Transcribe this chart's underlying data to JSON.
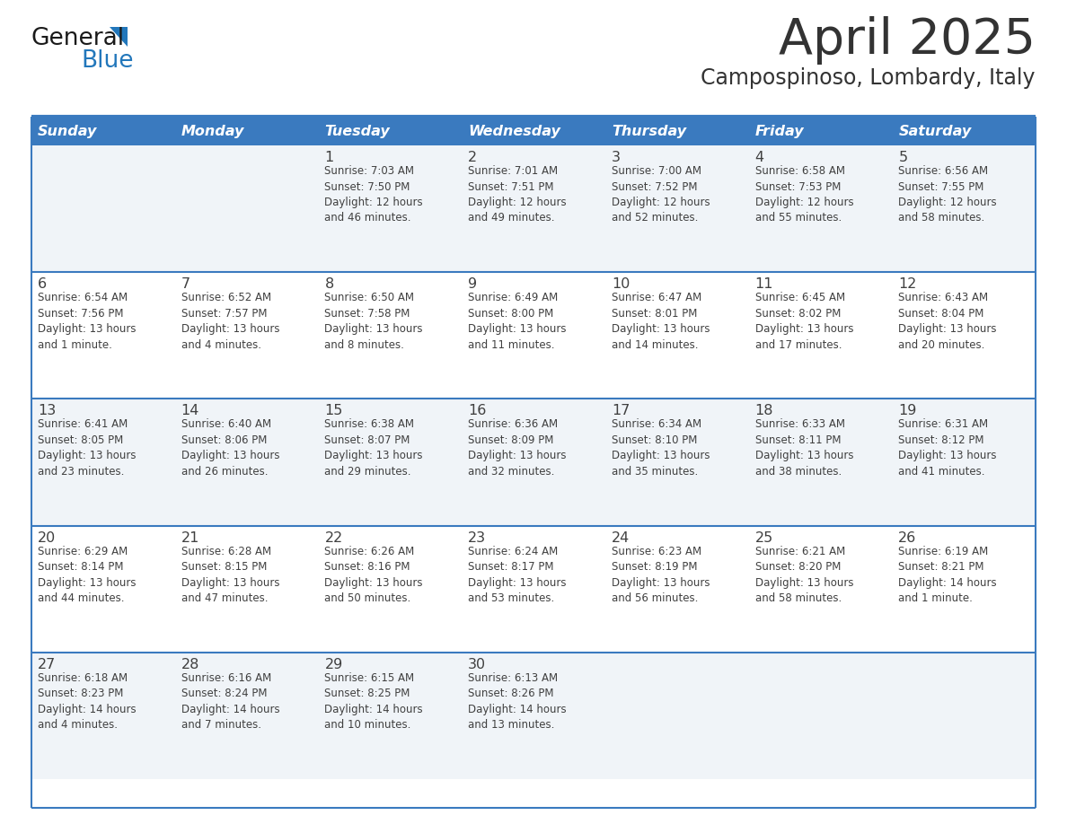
{
  "title": "April 2025",
  "subtitle": "Campospinoso, Lombardy, Italy",
  "days_of_week": [
    "Sunday",
    "Monday",
    "Tuesday",
    "Wednesday",
    "Thursday",
    "Friday",
    "Saturday"
  ],
  "header_bg": "#3a7abf",
  "header_text": "#ffffff",
  "cell_bg_odd": "#f0f4f8",
  "cell_bg_even": "#ffffff",
  "separator_color": "#3a7abf",
  "text_color": "#404040",
  "title_color": "#333333",
  "logo_text_color": "#1a1a1a",
  "logo_blue_color": "#2277bb",
  "calendar": [
    [
      {
        "day": null,
        "info": null
      },
      {
        "day": null,
        "info": null
      },
      {
        "day": 1,
        "info": "Sunrise: 7:03 AM\nSunset: 7:50 PM\nDaylight: 12 hours\nand 46 minutes."
      },
      {
        "day": 2,
        "info": "Sunrise: 7:01 AM\nSunset: 7:51 PM\nDaylight: 12 hours\nand 49 minutes."
      },
      {
        "day": 3,
        "info": "Sunrise: 7:00 AM\nSunset: 7:52 PM\nDaylight: 12 hours\nand 52 minutes."
      },
      {
        "day": 4,
        "info": "Sunrise: 6:58 AM\nSunset: 7:53 PM\nDaylight: 12 hours\nand 55 minutes."
      },
      {
        "day": 5,
        "info": "Sunrise: 6:56 AM\nSunset: 7:55 PM\nDaylight: 12 hours\nand 58 minutes."
      }
    ],
    [
      {
        "day": 6,
        "info": "Sunrise: 6:54 AM\nSunset: 7:56 PM\nDaylight: 13 hours\nand 1 minute."
      },
      {
        "day": 7,
        "info": "Sunrise: 6:52 AM\nSunset: 7:57 PM\nDaylight: 13 hours\nand 4 minutes."
      },
      {
        "day": 8,
        "info": "Sunrise: 6:50 AM\nSunset: 7:58 PM\nDaylight: 13 hours\nand 8 minutes."
      },
      {
        "day": 9,
        "info": "Sunrise: 6:49 AM\nSunset: 8:00 PM\nDaylight: 13 hours\nand 11 minutes."
      },
      {
        "day": 10,
        "info": "Sunrise: 6:47 AM\nSunset: 8:01 PM\nDaylight: 13 hours\nand 14 minutes."
      },
      {
        "day": 11,
        "info": "Sunrise: 6:45 AM\nSunset: 8:02 PM\nDaylight: 13 hours\nand 17 minutes."
      },
      {
        "day": 12,
        "info": "Sunrise: 6:43 AM\nSunset: 8:04 PM\nDaylight: 13 hours\nand 20 minutes."
      }
    ],
    [
      {
        "day": 13,
        "info": "Sunrise: 6:41 AM\nSunset: 8:05 PM\nDaylight: 13 hours\nand 23 minutes."
      },
      {
        "day": 14,
        "info": "Sunrise: 6:40 AM\nSunset: 8:06 PM\nDaylight: 13 hours\nand 26 minutes."
      },
      {
        "day": 15,
        "info": "Sunrise: 6:38 AM\nSunset: 8:07 PM\nDaylight: 13 hours\nand 29 minutes."
      },
      {
        "day": 16,
        "info": "Sunrise: 6:36 AM\nSunset: 8:09 PM\nDaylight: 13 hours\nand 32 minutes."
      },
      {
        "day": 17,
        "info": "Sunrise: 6:34 AM\nSunset: 8:10 PM\nDaylight: 13 hours\nand 35 minutes."
      },
      {
        "day": 18,
        "info": "Sunrise: 6:33 AM\nSunset: 8:11 PM\nDaylight: 13 hours\nand 38 minutes."
      },
      {
        "day": 19,
        "info": "Sunrise: 6:31 AM\nSunset: 8:12 PM\nDaylight: 13 hours\nand 41 minutes."
      }
    ],
    [
      {
        "day": 20,
        "info": "Sunrise: 6:29 AM\nSunset: 8:14 PM\nDaylight: 13 hours\nand 44 minutes."
      },
      {
        "day": 21,
        "info": "Sunrise: 6:28 AM\nSunset: 8:15 PM\nDaylight: 13 hours\nand 47 minutes."
      },
      {
        "day": 22,
        "info": "Sunrise: 6:26 AM\nSunset: 8:16 PM\nDaylight: 13 hours\nand 50 minutes."
      },
      {
        "day": 23,
        "info": "Sunrise: 6:24 AM\nSunset: 8:17 PM\nDaylight: 13 hours\nand 53 minutes."
      },
      {
        "day": 24,
        "info": "Sunrise: 6:23 AM\nSunset: 8:19 PM\nDaylight: 13 hours\nand 56 minutes."
      },
      {
        "day": 25,
        "info": "Sunrise: 6:21 AM\nSunset: 8:20 PM\nDaylight: 13 hours\nand 58 minutes."
      },
      {
        "day": 26,
        "info": "Sunrise: 6:19 AM\nSunset: 8:21 PM\nDaylight: 14 hours\nand 1 minute."
      }
    ],
    [
      {
        "day": 27,
        "info": "Sunrise: 6:18 AM\nSunset: 8:23 PM\nDaylight: 14 hours\nand 4 minutes."
      },
      {
        "day": 28,
        "info": "Sunrise: 6:16 AM\nSunset: 8:24 PM\nDaylight: 14 hours\nand 7 minutes."
      },
      {
        "day": 29,
        "info": "Sunrise: 6:15 AM\nSunset: 8:25 PM\nDaylight: 14 hours\nand 10 minutes."
      },
      {
        "day": 30,
        "info": "Sunrise: 6:13 AM\nSunset: 8:26 PM\nDaylight: 14 hours\nand 13 minutes."
      },
      {
        "day": null,
        "info": null
      },
      {
        "day": null,
        "info": null
      },
      {
        "day": null,
        "info": null
      }
    ]
  ]
}
